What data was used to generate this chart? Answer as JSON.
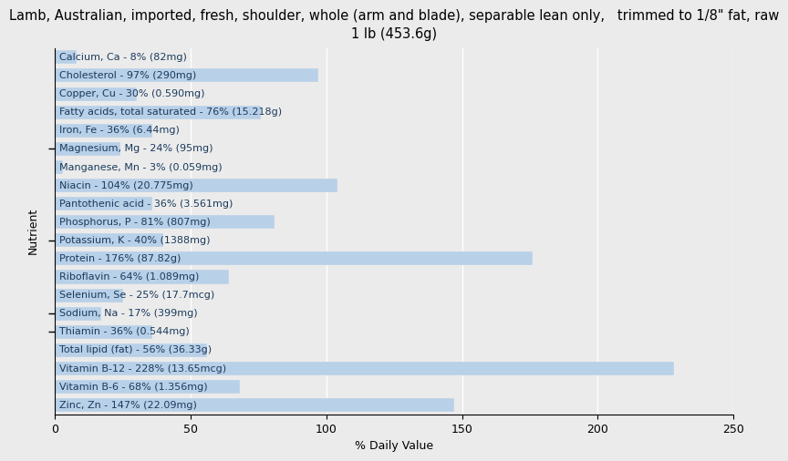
{
  "title": "Lamb, Australian, imported, fresh, shoulder, whole (arm and blade), separable lean only,   trimmed to 1/8\" fat, raw\n1 lb (453.6g)",
  "xlabel": "% Daily Value",
  "ylabel": "Nutrient",
  "nutrients": [
    "Calcium, Ca - 8% (82mg)",
    "Cholesterol - 97% (290mg)",
    "Copper, Cu - 30% (0.590mg)",
    "Fatty acids, total saturated - 76% (15.218g)",
    "Iron, Fe - 36% (6.44mg)",
    "Magnesium, Mg - 24% (95mg)",
    "Manganese, Mn - 3% (0.059mg)",
    "Niacin - 104% (20.775mg)",
    "Pantothenic acid - 36% (3.561mg)",
    "Phosphorus, P - 81% (807mg)",
    "Potassium, K - 40% (1388mg)",
    "Protein - 176% (87.82g)",
    "Riboflavin - 64% (1.089mg)",
    "Selenium, Se - 25% (17.7mcg)",
    "Sodium, Na - 17% (399mg)",
    "Thiamin - 36% (0.544mg)",
    "Total lipid (fat) - 56% (36.33g)",
    "Vitamin B-12 - 228% (13.65mcg)",
    "Vitamin B-6 - 68% (1.356mg)",
    "Zinc, Zn - 147% (22.09mg)"
  ],
  "values": [
    8,
    97,
    30,
    76,
    36,
    24,
    3,
    104,
    36,
    81,
    40,
    176,
    64,
    25,
    17,
    36,
    56,
    228,
    68,
    147
  ],
  "bar_color": "#b8d0e8",
  "text_color": "#1a3a5c",
  "background_color": "#ebebeb",
  "grid_color": "#ffffff",
  "xlim": [
    0,
    250
  ],
  "xticks": [
    0,
    50,
    100,
    150,
    200,
    250
  ],
  "title_fontsize": 10.5,
  "label_fontsize": 8.0,
  "axis_label_fontsize": 9,
  "tick_label_fontsize": 9
}
